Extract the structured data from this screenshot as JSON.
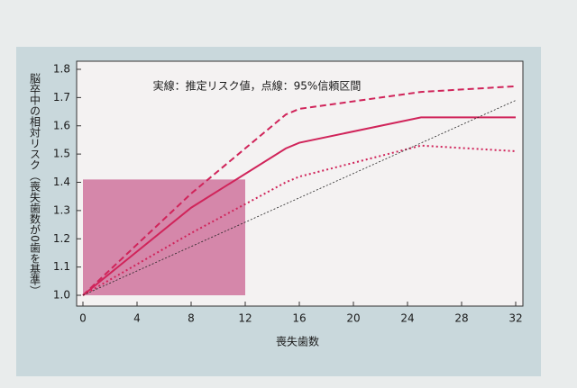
{
  "chart_data": {
    "type": "line",
    "annotation": "実線：推定リスク値，点線：95%信頼区間",
    "x_label": "喪失歯数",
    "y_label": "脳卒中の相対リスク（喪失歯数が0歯を基準）",
    "xlim": [
      0,
      32
    ],
    "xticks": [
      0,
      4,
      8,
      12,
      16,
      20,
      24,
      28,
      32
    ],
    "ylim": [
      1.0,
      1.8
    ],
    "yticks": [
      {
        "value": 1.0,
        "label": "1.0"
      },
      1.1,
      1.2,
      1.3,
      1.4,
      1.5,
      1.6,
      1.7,
      1.8
    ],
    "shaded_region": {
      "x": [
        0,
        12
      ],
      "y": [
        1.0,
        1.41
      ],
      "color": "#c85a8c"
    },
    "series": [
      {
        "color": "#d0245a",
        "style": "solid",
        "x": [
          0,
          8,
          15,
          16,
          25,
          32
        ],
        "values": [
          1.0,
          1.31,
          1.52,
          1.54,
          1.63,
          1.63
        ]
      },
      {
        "color": "#d0245a",
        "style": "dashed",
        "x": [
          0,
          8,
          15,
          16,
          25,
          32
        ],
        "values": [
          1.0,
          1.36,
          1.64,
          1.66,
          1.72,
          1.74
        ]
      },
      {
        "color": "#d0245a",
        "style": "dotted",
        "x": [
          0,
          8,
          15,
          16,
          25,
          32
        ],
        "values": [
          1.0,
          1.22,
          1.4,
          1.42,
          1.53,
          1.51
        ]
      },
      {
        "color": "#222222",
        "style": "thin-dotted",
        "x": [
          0,
          32
        ],
        "values": [
          1.0,
          1.69
        ]
      }
    ]
  }
}
